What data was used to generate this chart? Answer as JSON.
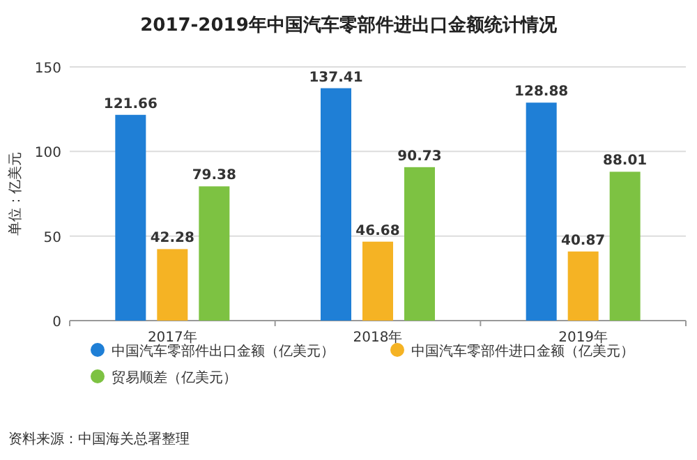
{
  "chart_data": {
    "type": "bar",
    "title": "2017-2019年中国汽车零部件进出口金额统计情况",
    "ylabel": "单位：亿美元",
    "categories": [
      "2017年",
      "2018年",
      "2019年"
    ],
    "series": [
      {
        "name": "中国汽车零部件出口金额（亿美元）",
        "color": "#1f7fd6",
        "values": [
          121.66,
          137.41,
          128.88
        ]
      },
      {
        "name": "中国汽车零部件进口金额（亿美元）",
        "color": "#f5b324",
        "values": [
          42.28,
          46.68,
          40.87
        ]
      },
      {
        "name": "贸易顺差（亿美元）",
        "color": "#7dc242",
        "values": [
          79.38,
          90.73,
          88.01
        ]
      }
    ],
    "ylim": [
      0,
      150
    ],
    "yticks": [
      0,
      50,
      100,
      150
    ],
    "grid": "y",
    "legend": "bottom",
    "data_labels": true,
    "annotations": [
      "资料来源：中国海关总署整理"
    ]
  }
}
